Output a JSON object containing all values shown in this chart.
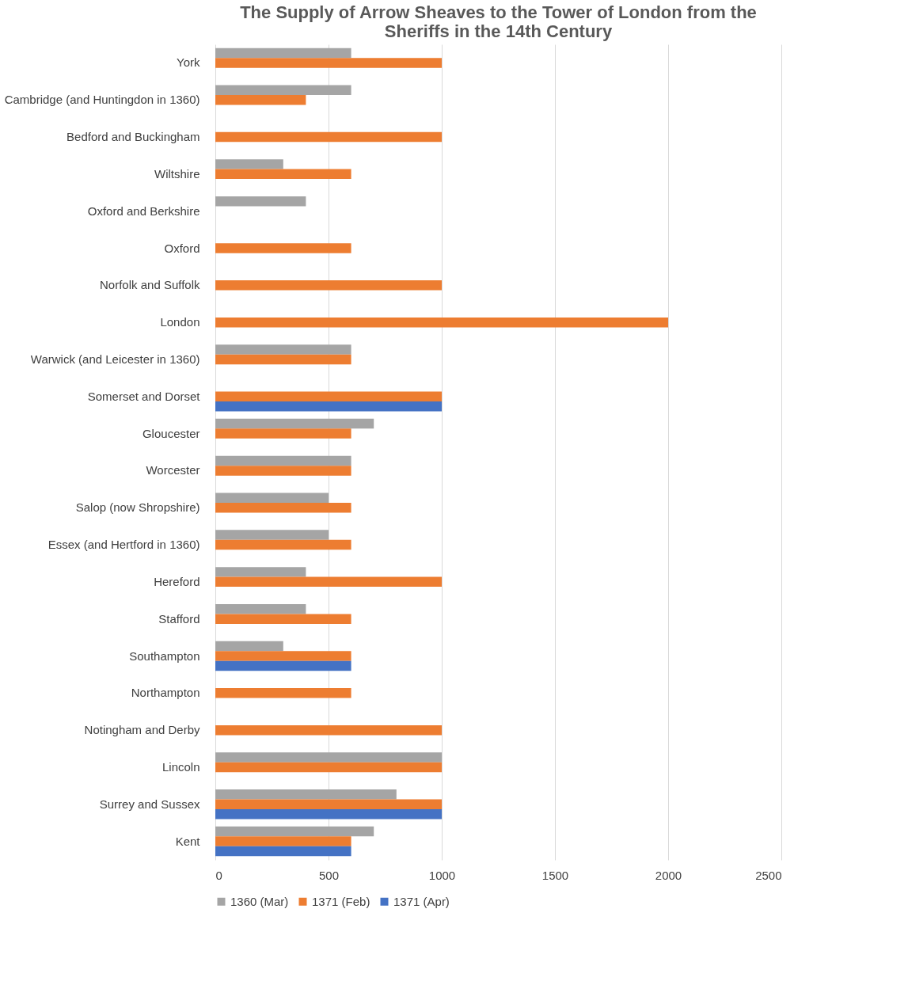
{
  "chart_data": {
    "type": "bar",
    "orientation": "horizontal",
    "title": "The Supply of Arrow Sheaves to the Tower of London from the Sheriffs in the 14th Century",
    "categories": [
      "York",
      "Cambridge (and Huntingdon in 1360)",
      "Bedford and Buckingham",
      "Wiltshire",
      "Oxford and Berkshire",
      "Oxford",
      "Norfolk and Suffolk",
      "London",
      "Warwick (and Leicester in 1360)",
      "Somerset and Dorset",
      "Gloucester",
      "Worcester",
      "Salop (now Shropshire)",
      "Essex (and Hertford in 1360)",
      "Hereford",
      "Stafford",
      "Southampton",
      "Northampton",
      "Notingham and Derby",
      "Lincoln",
      "Surrey and Sussex",
      "Kent"
    ],
    "series": [
      {
        "name": "1360 (Mar)",
        "color": "#a5a5a5",
        "values": [
          600,
          600,
          null,
          300,
          400,
          null,
          null,
          null,
          600,
          null,
          700,
          600,
          500,
          500,
          400,
          400,
          300,
          null,
          null,
          1000,
          800,
          700
        ]
      },
      {
        "name": "1371 (Feb)",
        "color": "#ed7d31",
        "values": [
          1000,
          400,
          1000,
          600,
          null,
          600,
          1000,
          2000,
          600,
          1000,
          600,
          600,
          600,
          600,
          1000,
          600,
          600,
          600,
          1000,
          1000,
          1000,
          600
        ]
      },
      {
        "name": "1371 (Apr)",
        "color": "#4472c4",
        "values": [
          null,
          null,
          null,
          null,
          null,
          null,
          null,
          null,
          null,
          1000,
          null,
          null,
          null,
          null,
          null,
          null,
          600,
          null,
          null,
          null,
          1000,
          600
        ]
      }
    ],
    "xlim": [
      0,
      2500
    ],
    "xticks": [
      0,
      500,
      1000,
      1500,
      2000,
      2500
    ],
    "grid": "x",
    "legend": "bottom"
  }
}
